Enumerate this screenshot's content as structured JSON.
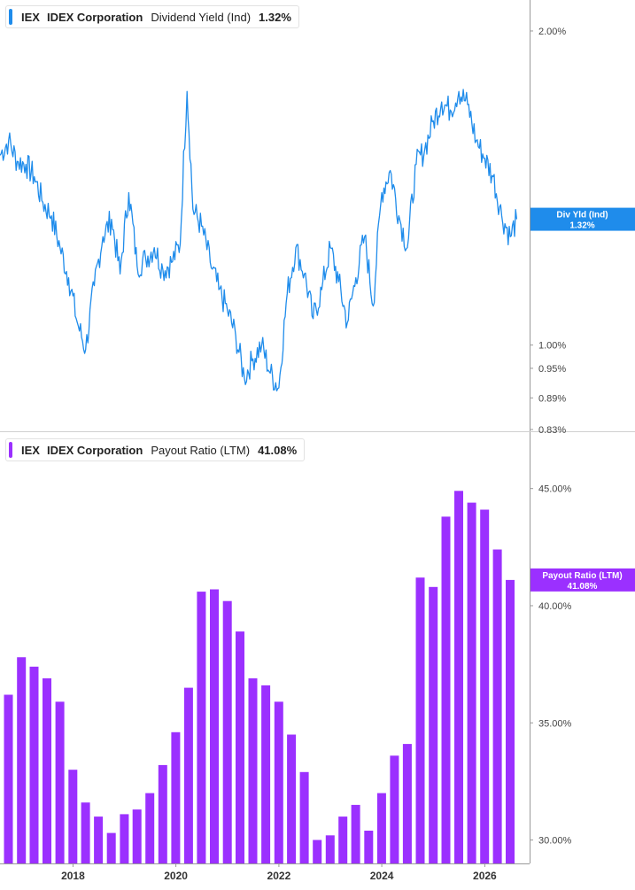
{
  "colors": {
    "dividend_yield": "#1f8ceb",
    "payout_ratio": "#9b30ff",
    "axis": "#9a9a9a"
  },
  "legend_top": {
    "ticker": "IEX",
    "company": "IDEX Corporation",
    "metric": "Dividend Yield (Ind)",
    "latest": "1.32%"
  },
  "legend_bottom": {
    "ticker": "IEX",
    "company": "IDEX Corporation",
    "metric": "Payout Ratio (LTM)",
    "latest": "41.08%"
  },
  "chart_data": [
    {
      "type": "line",
      "series": [
        {
          "name": "Div Yld (Ind)",
          "latest_label": "1.32%",
          "x": [
            "2016-08-01",
            "2016-10-01",
            "2016-12-01",
            "2017-02-01",
            "2017-04-01",
            "2017-06-01",
            "2017-08-01",
            "2017-10-01",
            "2017-12-01",
            "2018-02-01",
            "2018-04-01",
            "2018-06-01",
            "2018-08-01",
            "2018-10-01",
            "2018-12-01",
            "2019-02-01",
            "2019-04-01",
            "2019-06-01",
            "2019-08-01",
            "2019-10-01",
            "2019-12-01",
            "2020-02-01",
            "2020-03-20",
            "2020-05-01",
            "2020-07-01",
            "2020-09-01",
            "2020-11-01",
            "2021-01-01",
            "2021-03-01",
            "2021-05-01",
            "2021-07-01",
            "2021-09-01",
            "2021-11-01",
            "2022-01-01",
            "2022-03-01",
            "2022-05-01",
            "2022-07-01",
            "2022-09-01",
            "2022-11-01",
            "2023-01-01",
            "2023-03-01",
            "2023-05-01",
            "2023-07-01",
            "2023-09-01",
            "2023-11-01",
            "2024-01-01",
            "2024-03-01",
            "2024-05-01",
            "2024-07-01",
            "2024-09-01",
            "2024-11-01",
            "2025-01-01",
            "2025-03-01",
            "2025-05-01",
            "2025-07-01",
            "2025-09-01",
            "2025-11-01",
            "2026-01-01",
            "2026-03-01",
            "2026-05-01",
            "2026-07-01",
            "2026-08-15"
          ],
          "y": [
            1.52,
            1.57,
            1.5,
            1.49,
            1.45,
            1.37,
            1.33,
            1.24,
            1.16,
            1.05,
            0.99,
            1.14,
            1.27,
            1.32,
            1.17,
            1.4,
            1.19,
            1.21,
            1.24,
            1.18,
            1.2,
            1.25,
            1.75,
            1.35,
            1.3,
            1.2,
            1.13,
            1.08,
            1.02,
            0.93,
            0.97,
            1.0,
            0.94,
            0.91,
            1.12,
            1.24,
            1.17,
            1.06,
            1.13,
            1.24,
            1.15,
            1.05,
            1.16,
            1.27,
            1.09,
            1.4,
            1.47,
            1.33,
            1.24,
            1.49,
            1.54,
            1.64,
            1.71,
            1.68,
            1.75,
            1.7,
            1.57,
            1.51,
            1.45,
            1.33,
            1.27,
            1.32
          ]
        }
      ],
      "y_ticks": [
        {
          "value": 2.0,
          "label": "2.00%"
        },
        {
          "value": 1.0,
          "label": "1.00%"
        },
        {
          "value": 0.95,
          "label": "0.95%"
        },
        {
          "value": 0.89,
          "label": "0.89%"
        },
        {
          "value": 0.83,
          "label": "0.83%"
        }
      ],
      "y_scale": "log",
      "ylim": [
        0.83,
        2.1
      ],
      "grid": false
    },
    {
      "type": "bar",
      "series": [
        {
          "name": "Payout Ratio (LTM)",
          "latest_label": "41.08%",
          "x": [
            "2016-09-30",
            "2016-12-31",
            "2017-03-31",
            "2017-06-30",
            "2017-09-30",
            "2017-12-31",
            "2018-03-31",
            "2018-06-30",
            "2018-09-30",
            "2018-12-31",
            "2019-03-31",
            "2019-06-30",
            "2019-09-30",
            "2019-12-31",
            "2020-03-31",
            "2020-06-30",
            "2020-09-30",
            "2020-12-31",
            "2021-03-31",
            "2021-06-30",
            "2021-09-30",
            "2021-12-31",
            "2022-03-31",
            "2022-06-30",
            "2022-09-30",
            "2022-12-31",
            "2023-03-31",
            "2023-06-30",
            "2023-09-30",
            "2023-12-31",
            "2024-03-31",
            "2024-06-30",
            "2024-09-30",
            "2024-12-31",
            "2025-03-31",
            "2025-06-30",
            "2025-09-30",
            "2025-12-31",
            "2026-03-31",
            "2026-06-30"
          ],
          "y": [
            36.2,
            37.8,
            37.4,
            36.9,
            35.9,
            33.0,
            31.6,
            31.0,
            30.3,
            31.1,
            31.3,
            32.0,
            33.2,
            34.6,
            36.5,
            40.6,
            40.7,
            40.2,
            38.9,
            36.9,
            36.6,
            35.9,
            34.5,
            32.9,
            30.0,
            30.2,
            31.0,
            31.5,
            30.4,
            32.0,
            33.6,
            34.1,
            41.2,
            40.8,
            43.8,
            44.9,
            44.4,
            44.1,
            42.4,
            41.1
          ]
        }
      ],
      "y_ticks": [
        {
          "value": 45,
          "label": "45.00%"
        },
        {
          "value": 40,
          "label": "40.00%"
        },
        {
          "value": 35,
          "label": "35.00%"
        },
        {
          "value": 30,
          "label": "30.00%"
        }
      ],
      "ylim": [
        29.0,
        46.5
      ],
      "grid": false
    }
  ],
  "x_axis": {
    "range": [
      "2016-08-01",
      "2026-11-15"
    ],
    "ticks": [
      {
        "date": "2018-01-01",
        "label": "2018"
      },
      {
        "date": "2020-01-01",
        "label": "2020"
      },
      {
        "date": "2022-01-01",
        "label": "2022"
      },
      {
        "date": "2024-01-01",
        "label": "2024"
      },
      {
        "date": "2026-01-01",
        "label": "2026"
      }
    ]
  }
}
